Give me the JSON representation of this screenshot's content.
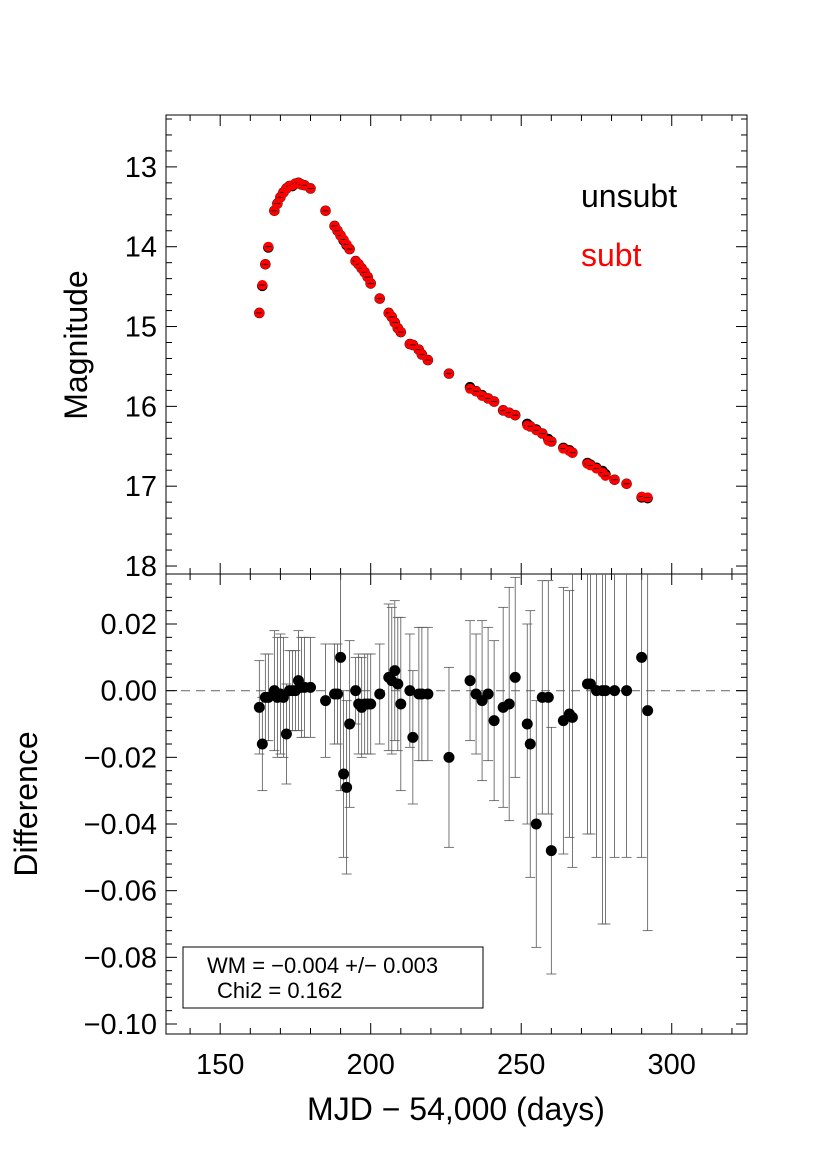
{
  "chart_data": [
    {
      "type": "scatter",
      "panel": "top",
      "xlabel": "",
      "ylabel": "Magnitude",
      "xlim": [
        132,
        325
      ],
      "ylim": [
        18.1,
        12.35
      ],
      "y_inverted": true,
      "yticks": [
        13,
        14,
        15,
        16,
        17,
        18
      ],
      "ytick_labels": [
        "13",
        "14",
        "15",
        "16",
        "17",
        "18"
      ],
      "legend": [
        "unsubt",
        "subt"
      ],
      "legend_placement": "top-right",
      "series": [
        {
          "name": "unsubt",
          "color": "#000000",
          "x": [
            163,
            164,
            165,
            166,
            168,
            169,
            170,
            171,
            172,
            173,
            174,
            175,
            176,
            177,
            178,
            180,
            185,
            188,
            189,
            190,
            191,
            192,
            193,
            195,
            196,
            197,
            198,
            199,
            200,
            203,
            206,
            207,
            208,
            209,
            210,
            213,
            214,
            216,
            217,
            219,
            226,
            233,
            235,
            237,
            239,
            241,
            244,
            246,
            248,
            252,
            253,
            255,
            257,
            259,
            260,
            264,
            266,
            267,
            272,
            273,
            275,
            277,
            278,
            281,
            285,
            290,
            292
          ],
          "y": [
            14.83,
            14.49,
            14.22,
            14.01,
            13.55,
            13.46,
            13.38,
            13.32,
            13.27,
            13.24,
            13.24,
            13.21,
            13.2,
            13.22,
            13.23,
            13.27,
            13.55,
            13.74,
            13.8,
            13.86,
            13.92,
            13.98,
            14.03,
            14.18,
            14.22,
            14.27,
            14.32,
            14.38,
            14.46,
            14.65,
            14.83,
            14.88,
            14.95,
            15.02,
            15.07,
            15.22,
            15.23,
            15.29,
            15.35,
            15.42,
            15.59,
            15.76,
            15.81,
            15.86,
            15.9,
            15.94,
            16.05,
            16.08,
            16.11,
            16.22,
            16.25,
            16.29,
            16.34,
            16.41,
            16.44,
            16.52,
            16.55,
            16.58,
            16.71,
            16.73,
            16.77,
            16.81,
            16.85,
            16.92,
            16.97,
            17.14,
            17.15
          ]
        },
        {
          "name": "subt",
          "color": "#ff0000",
          "x": [
            163,
            164,
            165,
            166,
            168,
            169,
            170,
            171,
            172,
            173,
            174,
            175,
            176,
            177,
            178,
            180,
            185,
            188,
            189,
            190,
            191,
            192,
            193,
            195,
            196,
            197,
            198,
            199,
            200,
            203,
            206,
            207,
            208,
            209,
            210,
            213,
            214,
            216,
            217,
            219,
            226,
            233,
            235,
            237,
            239,
            241,
            244,
            246,
            248,
            252,
            253,
            255,
            257,
            259,
            260,
            264,
            266,
            267,
            272,
            273,
            275,
            277,
            278,
            281,
            285,
            290,
            292
          ],
          "y": [
            14.83,
            14.48,
            14.22,
            14.0,
            13.55,
            13.46,
            13.38,
            13.32,
            13.27,
            13.24,
            13.23,
            13.21,
            13.2,
            13.22,
            13.23,
            13.27,
            13.55,
            13.74,
            13.8,
            13.86,
            13.91,
            13.97,
            14.03,
            14.18,
            14.22,
            14.27,
            14.32,
            14.38,
            14.46,
            14.65,
            14.83,
            14.88,
            14.95,
            15.02,
            15.07,
            15.22,
            15.23,
            15.29,
            15.35,
            15.42,
            15.59,
            15.78,
            15.81,
            15.87,
            15.9,
            15.94,
            16.05,
            16.08,
            16.11,
            16.24,
            16.25,
            16.3,
            16.34,
            16.43,
            16.44,
            16.53,
            16.56,
            16.58,
            16.72,
            16.74,
            16.78,
            16.83,
            16.87,
            16.92,
            16.97,
            17.13,
            17.14
          ]
        }
      ]
    },
    {
      "type": "scatter",
      "panel": "bottom",
      "xlabel": "MJD − 54,000 (days)",
      "ylabel": "Difference",
      "xlim": [
        132,
        325
      ],
      "ylim": [
        -0.103,
        0.035
      ],
      "xticks": [
        150,
        200,
        250,
        300
      ],
      "xtick_labels": [
        "150",
        "200",
        "250",
        "300"
      ],
      "yticks": [
        0.02,
        0.0,
        -0.02,
        -0.04,
        -0.06,
        -0.08,
        -0.1
      ],
      "ytick_labels": [
        "0.02",
        "0.00",
        "−0.02",
        "−0.04",
        "−0.06",
        "−0.08",
        "−0.10"
      ],
      "reference_line": 0,
      "series": [
        {
          "name": "",
          "color": "#000000",
          "x": [
            163,
            164,
            165,
            166,
            168,
            169,
            170,
            171,
            172,
            173,
            174,
            175,
            176,
            177,
            178,
            180,
            185,
            188,
            189,
            190,
            191,
            192,
            193,
            195,
            196,
            197,
            198,
            199,
            200,
            203,
            206,
            207,
            208,
            209,
            210,
            213,
            214,
            216,
            217,
            219,
            226,
            233,
            235,
            237,
            239,
            241,
            244,
            246,
            248,
            252,
            253,
            255,
            257,
            259,
            260,
            264,
            266,
            267,
            272,
            273,
            275,
            277,
            278,
            281,
            285,
            290,
            292
          ],
          "y": [
            -0.005,
            -0.016,
            -0.002,
            -0.002,
            0.0,
            -0.002,
            -0.001,
            -0.002,
            -0.013,
            0.0,
            0.0,
            0.0,
            0.003,
            0.001,
            0.001,
            0.001,
            -0.003,
            -0.001,
            -0.001,
            0.01,
            -0.025,
            -0.029,
            -0.01,
            0.0,
            -0.004,
            -0.005,
            -0.004,
            -0.004,
            -0.004,
            -0.001,
            0.004,
            0.003,
            0.006,
            0.002,
            -0.004,
            0.0,
            -0.014,
            -0.001,
            -0.001,
            -0.001,
            -0.02,
            0.003,
            -0.001,
            -0.003,
            -0.001,
            -0.009,
            -0.005,
            -0.004,
            0.004,
            -0.01,
            -0.016,
            -0.04,
            -0.002,
            -0.002,
            -0.048,
            -0.009,
            -0.007,
            -0.008,
            0.002,
            0.002,
            0.0,
            0.0,
            0.0,
            0.0,
            0.0,
            0.01,
            -0.006
          ],
          "yerr": [
            0.014,
            0.014,
            0.013,
            0.013,
            0.018,
            0.018,
            0.018,
            0.018,
            0.015,
            0.012,
            0.012,
            0.012,
            0.015,
            0.015,
            0.015,
            0.015,
            0.017,
            0.015,
            0.015,
            0.04,
            0.025,
            0.026,
            0.025,
            0.01,
            0.015,
            0.015,
            0.015,
            0.015,
            0.015,
            0.015,
            0.022,
            0.022,
            0.021,
            0.02,
            0.026,
            0.017,
            0.02,
            0.02,
            0.02,
            0.02,
            0.027,
            0.018,
            0.018,
            0.024,
            0.02,
            0.024,
            0.03,
            0.035,
            0.03,
            0.03,
            0.04,
            0.037,
            0.035,
            0.035,
            0.037,
            0.04,
            0.037,
            0.045,
            0.045,
            0.045,
            0.05,
            0.07,
            0.07,
            0.05,
            0.05,
            0.06,
            0.066
          ],
          "note": ""
        }
      ],
      "annotation": {
        "line1": "WM = −0.004 +/− 0.003",
        "line2": "Chi2 = 0.162"
      }
    }
  ]
}
